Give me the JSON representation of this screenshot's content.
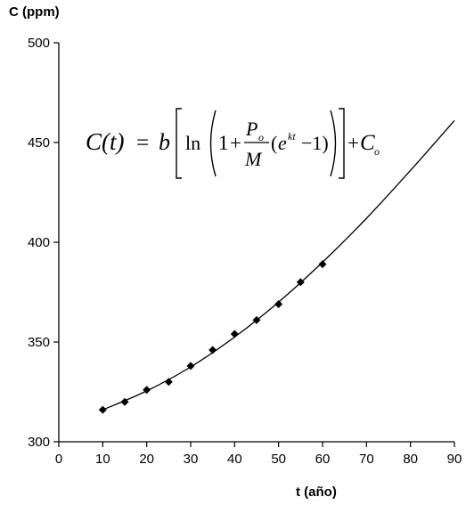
{
  "chart_data": {
    "type": "scatter",
    "title": "",
    "xlabel": "t (año)",
    "ylabel": "C (ppm)",
    "xlim": [
      0,
      90
    ],
    "ylim": [
      300,
      500
    ],
    "x_ticks": [
      "0",
      "10",
      "20",
      "30",
      "40",
      "50",
      "60",
      "70",
      "80",
      "90"
    ],
    "y_ticks": [
      "300",
      "350",
      "400",
      "450",
      "500"
    ],
    "grid": false,
    "series": [
      {
        "kind": "points",
        "marker": "diamond",
        "color": "#000000",
        "x": [
          10,
          15,
          20,
          25,
          30,
          35,
          40,
          45,
          50,
          55,
          60
        ],
        "y": [
          316,
          320,
          326,
          330,
          338,
          346,
          354,
          361,
          369,
          380,
          389
        ]
      },
      {
        "kind": "line",
        "color": "#000000",
        "x": [
          10,
          20,
          30,
          40,
          50,
          60,
          70,
          80,
          90
        ],
        "y": [
          316,
          325.5,
          337.5,
          352.5,
          370,
          390,
          412,
          436,
          461
        ]
      }
    ],
    "annotation": {
      "lhs": "C(t)",
      "eq": "=",
      "b": "b",
      "ln": "ln",
      "one": "1",
      "plus": "+",
      "num": "P",
      "num_sub": "o",
      "den": "M",
      "e": "e",
      "exp": "kt",
      "minus_one": "−1)",
      "open_paren": "(",
      "c": "C",
      "c_sub": "o"
    }
  }
}
